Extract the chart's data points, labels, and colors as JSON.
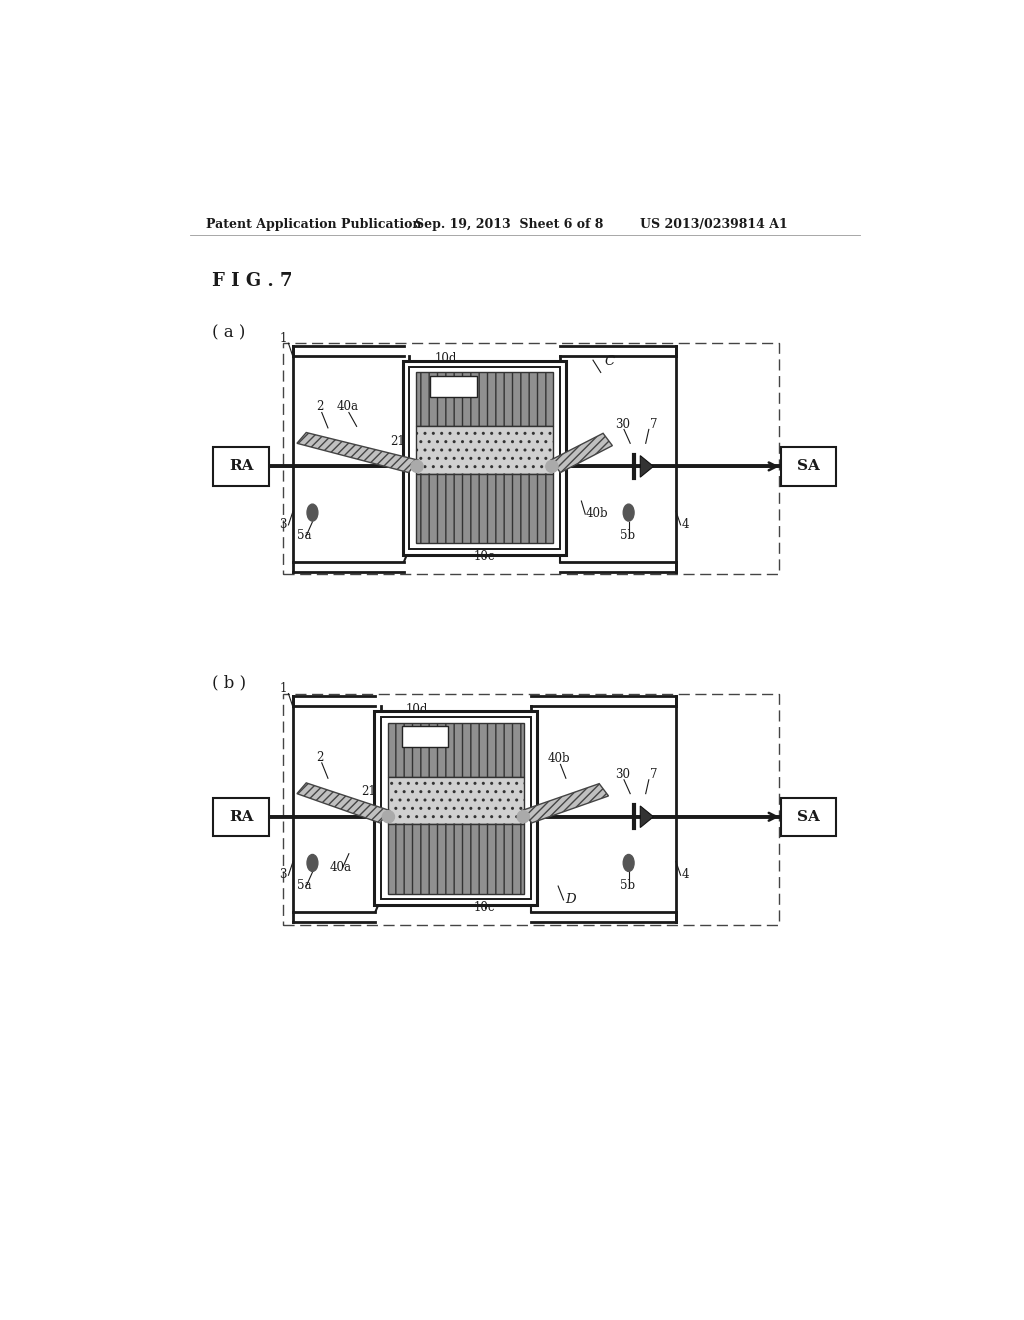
{
  "bg_color": "#ffffff",
  "header_text": "Patent Application Publication",
  "header_date": "Sep. 19, 2013  Sheet 6 of 8",
  "header_patent": "US 2013/0239814 A1",
  "fig_label": "F I G . 7",
  "sub_a_label": "( a )",
  "sub_b_label": "( b )",
  "text_color": "#1a1a1a",
  "line_color": "#1a1a1a",
  "hatch_gray": "#888888",
  "hatch_light": "#cccccc",
  "tube_gray": "#aaaaaa"
}
